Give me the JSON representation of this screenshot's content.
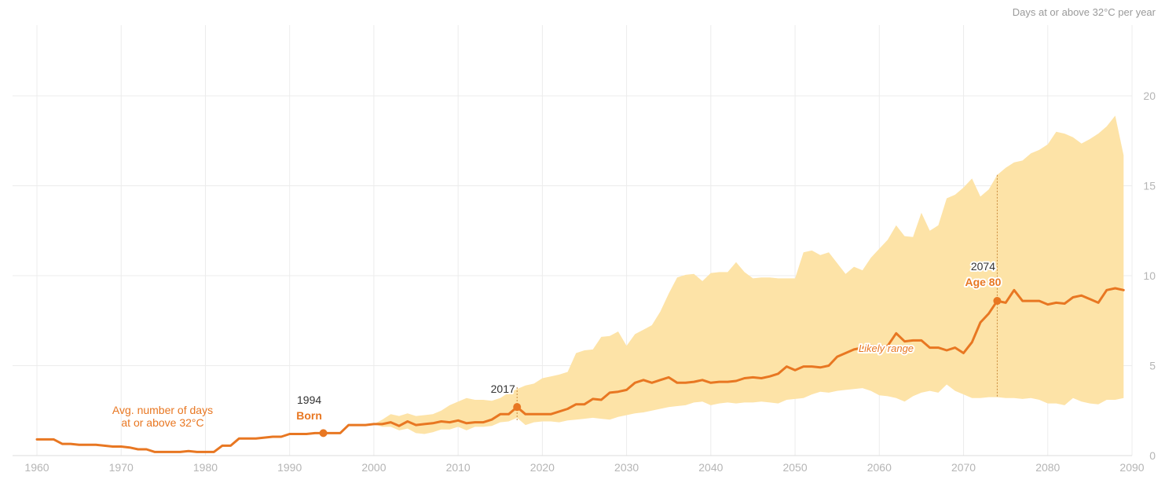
{
  "chart_data": {
    "type": "line",
    "unit_label": "Days at or above 32°C per year",
    "xlim": [
      1958,
      2090
    ],
    "ylim": [
      0,
      24
    ],
    "x_ticks": [
      1960,
      1970,
      1980,
      1990,
      2000,
      2010,
      2020,
      2030,
      2040,
      2050,
      2060,
      2070,
      2080,
      2090
    ],
    "y_ticks": [
      0,
      5,
      10,
      15,
      20
    ],
    "grid": true,
    "colors": {
      "line": "#e87722",
      "band": "#fde3a7",
      "grid": "#ececec",
      "annotation": "#e87722"
    },
    "series": [
      {
        "name": "Avg. number of days at or above 32°C",
        "x": [
          1960,
          1961,
          1962,
          1963,
          1964,
          1965,
          1966,
          1967,
          1968,
          1969,
          1970,
          1971,
          1972,
          1973,
          1974,
          1975,
          1976,
          1977,
          1978,
          1979,
          1980,
          1981,
          1982,
          1983,
          1984,
          1985,
          1986,
          1987,
          1988,
          1989,
          1990,
          1991,
          1992,
          1993,
          1994,
          1995,
          1996,
          1997,
          1998,
          1999,
          2000,
          2001,
          2002,
          2003,
          2004,
          2005,
          2006,
          2007,
          2008,
          2009,
          2010,
          2011,
          2012,
          2013,
          2014,
          2015,
          2016,
          2017,
          2018,
          2019,
          2020,
          2021,
          2022,
          2023,
          2024,
          2025,
          2026,
          2027,
          2028,
          2029,
          2030,
          2031,
          2032,
          2033,
          2034,
          2035,
          2036,
          2037,
          2038,
          2039,
          2040,
          2041,
          2042,
          2043,
          2044,
          2045,
          2046,
          2047,
          2048,
          2049,
          2050,
          2051,
          2052,
          2053,
          2054,
          2055,
          2056,
          2057,
          2058,
          2059,
          2060,
          2061,
          2062,
          2063,
          2064,
          2065,
          2066,
          2067,
          2068,
          2069,
          2070,
          2071,
          2072,
          2073,
          2074,
          2075,
          2076,
          2077,
          2078,
          2079,
          2080,
          2081,
          2082,
          2083,
          2084,
          2085,
          2086,
          2087,
          2088,
          2089
        ],
        "values": [
          0.9,
          0.9,
          0.9,
          0.65,
          0.65,
          0.6,
          0.6,
          0.6,
          0.55,
          0.5,
          0.5,
          0.45,
          0.35,
          0.35,
          0.2,
          0.2,
          0.2,
          0.2,
          0.25,
          0.2,
          0.2,
          0.2,
          0.55,
          0.55,
          0.95,
          0.95,
          0.95,
          1.0,
          1.05,
          1.05,
          1.2,
          1.2,
          1.2,
          1.25,
          1.25,
          1.25,
          1.25,
          1.7,
          1.7,
          1.7,
          1.75,
          1.75,
          1.85,
          1.65,
          1.9,
          1.7,
          1.75,
          1.8,
          1.9,
          1.85,
          1.95,
          1.8,
          1.85,
          1.85,
          2.0,
          2.3,
          2.3,
          2.7,
          2.3,
          2.3,
          2.3,
          2.3,
          2.45,
          2.6,
          2.85,
          2.85,
          3.15,
          3.1,
          3.5,
          3.55,
          3.65,
          4.05,
          4.2,
          4.05,
          4.2,
          4.35,
          4.05,
          4.05,
          4.1,
          4.2,
          4.05,
          4.1,
          4.1,
          4.15,
          4.3,
          4.35,
          4.3,
          4.4,
          4.55,
          4.95,
          4.75,
          4.95,
          4.95,
          4.9,
          5.0,
          5.5,
          5.7,
          5.9,
          6.0,
          6.1,
          6.05,
          6.1,
          6.8,
          6.35,
          6.4,
          6.4,
          6.0,
          6.0,
          5.85,
          6.0,
          5.7,
          6.3,
          7.4,
          7.9,
          8.6,
          8.5,
          9.2,
          8.6,
          8.6,
          8.6,
          8.4,
          8.5,
          8.45,
          8.8,
          8.9,
          8.7,
          8.5,
          9.2,
          9.3,
          9.2
        ]
      },
      {
        "name": "Likely range",
        "x": [
          2000,
          2001,
          2002,
          2003,
          2004,
          2005,
          2006,
          2007,
          2008,
          2009,
          2010,
          2011,
          2012,
          2013,
          2014,
          2015,
          2016,
          2017,
          2018,
          2019,
          2020,
          2021,
          2022,
          2023,
          2024,
          2025,
          2026,
          2027,
          2028,
          2029,
          2030,
          2031,
          2032,
          2033,
          2034,
          2035,
          2036,
          2037,
          2038,
          2039,
          2040,
          2041,
          2042,
          2043,
          2044,
          2045,
          2046,
          2047,
          2048,
          2049,
          2050,
          2051,
          2052,
          2053,
          2054,
          2055,
          2056,
          2057,
          2058,
          2059,
          2060,
          2061,
          2062,
          2063,
          2064,
          2065,
          2066,
          2067,
          2068,
          2069,
          2070,
          2071,
          2072,
          2073,
          2074,
          2075,
          2076,
          2077,
          2078,
          2079,
          2080,
          2081,
          2082,
          2083,
          2084,
          2085,
          2086,
          2087,
          2088,
          2089
        ],
        "lower": [
          1.75,
          1.6,
          1.6,
          1.4,
          1.5,
          1.25,
          1.2,
          1.3,
          1.45,
          1.45,
          1.6,
          1.4,
          1.6,
          1.6,
          1.65,
          1.85,
          1.9,
          2.1,
          1.7,
          1.85,
          1.9,
          1.9,
          1.85,
          1.95,
          2.0,
          2.05,
          2.1,
          2.05,
          2.0,
          2.15,
          2.25,
          2.35,
          2.4,
          2.5,
          2.6,
          2.7,
          2.75,
          2.8,
          2.95,
          3.0,
          2.8,
          2.9,
          2.95,
          2.9,
          2.95,
          2.95,
          3.0,
          2.95,
          2.9,
          3.1,
          3.15,
          3.2,
          3.4,
          3.55,
          3.5,
          3.6,
          3.65,
          3.7,
          3.75,
          3.6,
          3.35,
          3.3,
          3.2,
          3.0,
          3.3,
          3.5,
          3.6,
          3.5,
          3.95,
          3.6,
          3.4,
          3.2,
          3.2,
          3.25,
          3.25,
          3.2,
          3.2,
          3.15,
          3.2,
          3.1,
          2.9,
          2.9,
          2.8,
          3.2,
          3.0,
          2.9,
          2.85,
          3.1,
          3.1,
          3.2
        ],
        "upper": [
          1.75,
          2.0,
          2.3,
          2.2,
          2.35,
          2.2,
          2.25,
          2.3,
          2.5,
          2.8,
          3.0,
          3.2,
          3.1,
          3.1,
          3.05,
          3.2,
          3.5,
          3.7,
          3.9,
          4.0,
          4.3,
          4.4,
          4.5,
          4.65,
          5.7,
          5.85,
          5.9,
          6.6,
          6.65,
          6.9,
          6.1,
          6.75,
          7.0,
          7.25,
          8.0,
          9.0,
          9.9,
          10.05,
          10.1,
          9.7,
          10.15,
          10.2,
          10.2,
          10.75,
          10.2,
          9.85,
          9.9,
          9.9,
          9.85,
          9.85,
          9.85,
          11.3,
          11.4,
          11.15,
          11.3,
          10.7,
          10.1,
          10.5,
          10.3,
          11.0,
          11.5,
          12.0,
          12.8,
          12.2,
          12.15,
          13.5,
          12.5,
          12.8,
          14.3,
          14.5,
          14.9,
          15.4,
          14.4,
          14.8,
          15.6,
          16.0,
          16.3,
          16.4,
          16.8,
          17.0,
          17.3,
          18.0,
          17.9,
          17.7,
          17.35,
          17.6,
          17.9,
          18.3,
          18.9,
          16.7
        ]
      }
    ],
    "annotations": [
      {
        "year": 1994,
        "label": "1994",
        "sublabel": "Born",
        "y": 1.25
      },
      {
        "year": 2017,
        "label": "2017",
        "sublabel": "",
        "y": 2.7
      },
      {
        "year": 2074,
        "label": "2074",
        "sublabel": "Age 80",
        "y": 8.6
      }
    ],
    "avg_label_line1": "Avg. number of days",
    "avg_label_line2": "at or above 32°C",
    "range_label": "Likely range"
  }
}
